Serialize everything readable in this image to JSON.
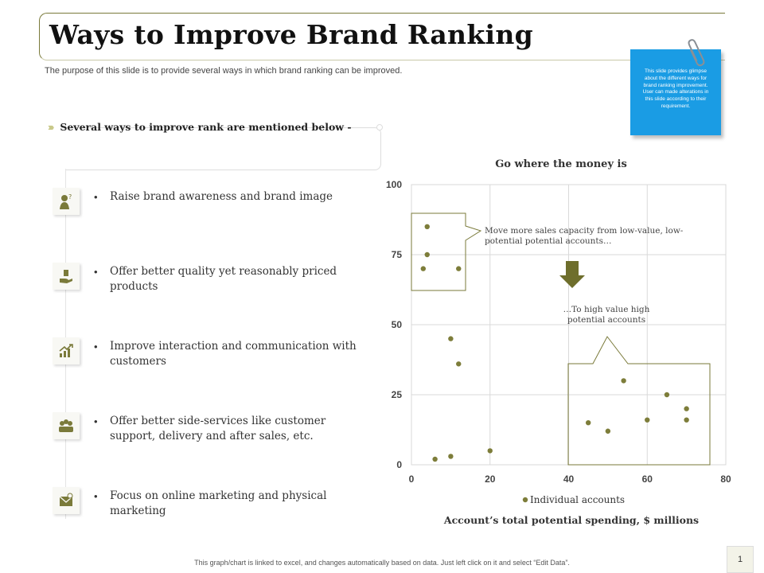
{
  "slide": {
    "title": "Ways to Improve Brand Ranking",
    "subtitle": "The purpose of this slide is to provide several ways in which brand ranking can be improved.",
    "note": "This slide provides glimpse about the different ways for brand ranking improvement. User can made alterations in this slide according to their requirement.",
    "section_heading": "Several ways to improve rank are mentioned below -",
    "footer": "This graph/chart is linked to excel, and changes automatically based on data. Just left click on it and select “Edit Data”.",
    "page_number": "1"
  },
  "ways": [
    {
      "text": "Raise brand awareness  and brand image",
      "icon": "idea-person-icon"
    },
    {
      "text": "Offer better quality yet reasonably priced products",
      "icon": "hand-money-icon"
    },
    {
      "text": "Improve interaction and communication with customers",
      "icon": "growth-chart-icon"
    },
    {
      "text": "Offer better side-services like customer support, delivery and after sales, etc.",
      "icon": "team-people-icon"
    },
    {
      "text": "Focus on online marketing and physical marketing",
      "icon": "email-icon"
    }
  ],
  "colors": {
    "accent": "#7a7a3a",
    "marker": "#7d7d3a",
    "note_bg": "#1a9ce4",
    "grid": "#d9d9d9"
  },
  "chart_data": {
    "type": "scatter",
    "title": "Go where the money is",
    "xlabel": "Account’s total potential spending, $ millions",
    "ylabel": "",
    "xlim": [
      0,
      80
    ],
    "ylim": [
      0,
      100
    ],
    "x_ticks": [
      "0",
      "20",
      "40",
      "60",
      "80"
    ],
    "y_ticks": [
      "0",
      "25",
      "50",
      "75",
      "100"
    ],
    "grid": true,
    "legend": "bottom",
    "series": [
      {
        "name": "Individual accounts",
        "points": [
          [
            4,
            85
          ],
          [
            4,
            75
          ],
          [
            3,
            70
          ],
          [
            12,
            70
          ],
          [
            10,
            45
          ],
          [
            12,
            36
          ],
          [
            6,
            2
          ],
          [
            10,
            3
          ],
          [
            20,
            5
          ],
          [
            45,
            15
          ],
          [
            50,
            12
          ],
          [
            54,
            30
          ],
          [
            60,
            16
          ],
          [
            65,
            25
          ],
          [
            70,
            20
          ],
          [
            70,
            16
          ]
        ]
      }
    ],
    "annotations": [
      "Move more sales capacity from low-value, low-potential potential accounts…",
      "…To high value high potential accounts"
    ]
  }
}
